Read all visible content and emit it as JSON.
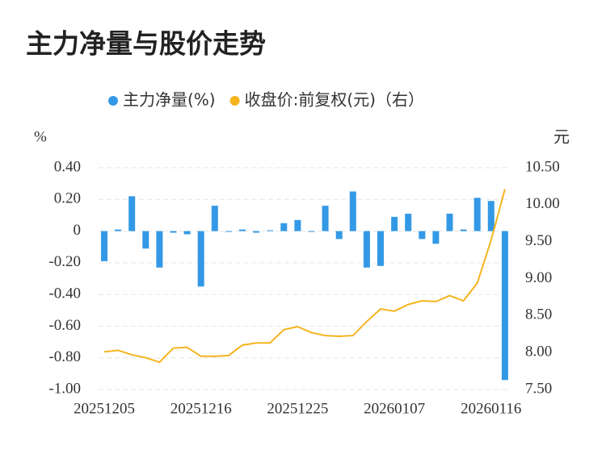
{
  "chart_data": {
    "type": "bar-line",
    "title": "主力净量与股价走势",
    "y_unit": "%",
    "y2_unit": "元",
    "categories": [
      "20251205",
      null,
      null,
      null,
      null,
      null,
      null,
      "20251216",
      null,
      null,
      null,
      null,
      null,
      null,
      "20251225",
      null,
      null,
      null,
      null,
      null,
      null,
      "20260107",
      null,
      null,
      null,
      null,
      null,
      null,
      "20260116",
      null
    ],
    "series": [
      {
        "name": "主力净量(%)",
        "type": "bar",
        "color": "#3399e6",
        "values": [
          -0.19,
          0.01,
          0.22,
          -0.11,
          -0.23,
          -0.01,
          -0.02,
          -0.35,
          0.16,
          0,
          0.01,
          -0.01,
          0.005,
          0.05,
          0.07,
          0,
          0.16,
          -0.05,
          0.25,
          -0.23,
          -0.22,
          0.09,
          0.11,
          -0.05,
          -0.08,
          0.11,
          0.01,
          0.21,
          0.19,
          -0.94
        ]
      },
      {
        "name": "收盘价:前复权(元)（右）",
        "type": "line",
        "axis": "y2",
        "color": "#f5b41e",
        "values": [
          8.01,
          8.03,
          7.97,
          7.93,
          7.87,
          8.06,
          8.07,
          7.95,
          7.95,
          7.96,
          8.1,
          8.13,
          8.13,
          8.31,
          8.35,
          8.27,
          8.23,
          8.22,
          8.23,
          8.42,
          8.59,
          8.56,
          8.65,
          8.7,
          8.69,
          8.77,
          8.7,
          8.94,
          9.52,
          10.21
        ]
      }
    ],
    "ylim": [
      -1.0,
      0.4
    ],
    "yticks": [
      {
        "value": 0.4,
        "label": "0.40"
      },
      {
        "value": 0.2,
        "label": "0.20"
      },
      0,
      {
        "value": -0.2,
        "label": "-0.20"
      },
      {
        "value": -0.4,
        "label": "-0.40"
      },
      {
        "value": -0.6,
        "label": "-0.60"
      },
      {
        "value": -0.8,
        "label": "-0.80"
      },
      {
        "value": -1.0,
        "label": "-1.00"
      }
    ],
    "y2lim": [
      7.5,
      10.5
    ],
    "y2ticks": [
      {
        "value": 10.5,
        "label": "10.50"
      },
      {
        "value": 10.0,
        "label": "10.00"
      },
      {
        "value": 9.5,
        "label": "9.50"
      },
      {
        "value": 9.0,
        "label": "9.00"
      },
      {
        "value": 8.5,
        "label": "8.50"
      },
      {
        "value": 8.0,
        "label": "8.00"
      },
      {
        "value": 7.5,
        "label": "7.50"
      }
    ],
    "grid": true
  }
}
